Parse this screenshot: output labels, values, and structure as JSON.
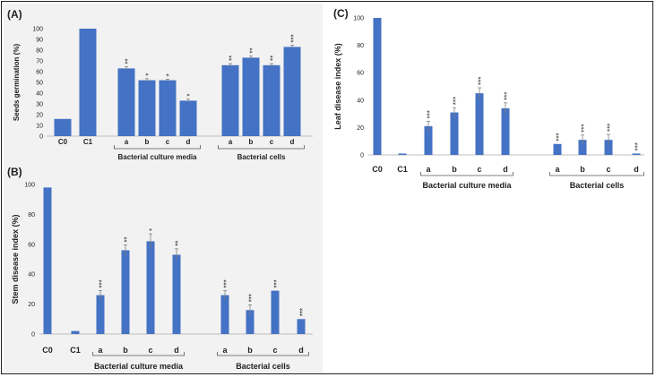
{
  "colors": {
    "bar": "#4472c4",
    "axis": "#bfbfbf",
    "text": "#222222"
  },
  "chart_data": [
    {
      "id": "A",
      "panel_label": "(A)",
      "type": "bar",
      "ylabel": "Seeds germination (%)",
      "ylim": [
        0,
        100
      ],
      "yticks": [
        0,
        10,
        20,
        30,
        40,
        50,
        60,
        70,
        80,
        90,
        100
      ],
      "grid": false,
      "categories": [
        "C0",
        "C1",
        "a",
        "b",
        "c",
        "d",
        "a",
        "b",
        "c",
        "d"
      ],
      "values": [
        16,
        100,
        63,
        52,
        52,
        33,
        66,
        73,
        66,
        83
      ],
      "errors": [
        0,
        0,
        1.5,
        1.5,
        1,
        1.5,
        1.5,
        1.5,
        1.5,
        1.5
      ],
      "annotations": [
        "",
        "",
        "**",
        "*",
        "*",
        "*",
        "**",
        "**",
        "**",
        "***"
      ],
      "groups": [
        {
          "label": "Bacterial culture media",
          "from": 2,
          "to": 5
        },
        {
          "label": "Bacterial cells",
          "from": 6,
          "to": 9
        }
      ]
    },
    {
      "id": "B",
      "panel_label": "(B)",
      "type": "bar",
      "ylabel": "Stem disease index (%)",
      "ylim": [
        0,
        100
      ],
      "yticks": [
        0,
        20,
        40,
        60,
        80,
        100
      ],
      "grid": false,
      "categories": [
        "C0",
        "C1",
        "a",
        "b",
        "c",
        "d",
        "a",
        "b",
        "c",
        "d"
      ],
      "values": [
        98,
        2,
        26,
        56,
        62,
        53,
        26,
        16,
        29,
        10
      ],
      "errors": [
        0,
        0,
        3,
        3.5,
        5,
        4,
        3,
        3.5,
        0,
        0
      ],
      "annotations": [
        "",
        "",
        "***",
        "**",
        "*",
        "**",
        "***",
        "***",
        "***",
        "***"
      ],
      "groups": [
        {
          "label": "Bacterial culture media",
          "from": 2,
          "to": 5
        },
        {
          "label": "Bacterial cells",
          "from": 6,
          "to": 9
        }
      ]
    },
    {
      "id": "C",
      "panel_label": "(C)",
      "type": "bar",
      "ylabel": "Leaf disease index (%)",
      "ylim": [
        0,
        100
      ],
      "yticks": [
        0,
        20,
        40,
        60,
        80,
        100
      ],
      "grid": false,
      "categories": [
        "C0",
        "C1",
        "a",
        "b",
        "c",
        "d",
        "a",
        "b",
        "c",
        "d"
      ],
      "values": [
        100,
        1,
        21,
        31,
        45,
        34,
        8,
        11,
        11,
        1
      ],
      "errors": [
        0,
        0,
        3.5,
        3.5,
        4,
        4,
        0,
        3.5,
        4,
        0
      ],
      "annotations": [
        "",
        "",
        "***",
        "***",
        "***",
        "***",
        "***",
        "***",
        "***",
        "***"
      ],
      "groups": [
        {
          "label": "Bacterial culture media",
          "from": 2,
          "to": 5
        },
        {
          "label": "Bacterial cells",
          "from": 6,
          "to": 9
        }
      ]
    }
  ]
}
